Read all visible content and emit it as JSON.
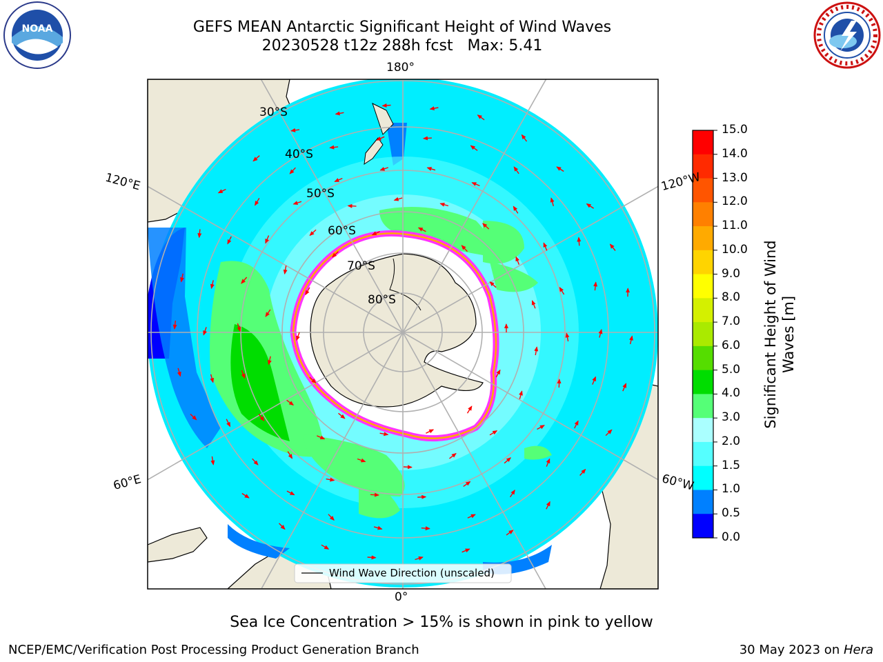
{
  "title_line1": "GEFS MEAN Antarctic Significant Height of Wind Waves",
  "title_line2": "20230528 t12z 288h fcst   Max: 5.41",
  "logos": {
    "left": "NOAA",
    "right": "NATIONAL WEATHER SERVICE"
  },
  "map": {
    "projection": "south-polar-stereographic",
    "longitude_labels": {
      "top": "180°",
      "bottom": "0°",
      "upper_left": "120°E",
      "upper_right": "120°W",
      "lower_left": "60°E",
      "lower_right": "60°W"
    },
    "latitude_labels": [
      "30°S",
      "40°S",
      "50°S",
      "60°S",
      "70°S",
      "80°S"
    ],
    "legend_text": "Wind Wave Direction (unscaled)",
    "colors": {
      "land": "#ede9d8",
      "ice": "#ffffff",
      "grid": "#b0b0b0",
      "arrow": "#ff0000",
      "ice_edge": [
        "#ff33ff",
        "#ffaa00",
        "#ffff00"
      ]
    }
  },
  "colorbar": {
    "label_line1": "Significant Height of Wind",
    "label_line2": "Waves [m]",
    "ticks": [
      "15.0",
      "14.0",
      "13.0",
      "12.0",
      "11.0",
      "10.0",
      "9.0",
      "8.0",
      "7.0",
      "6.0",
      "5.0",
      "4.0",
      "3.0",
      "2.0",
      "1.5",
      "1.0",
      "0.5",
      "0.0"
    ],
    "bins_top_to_bottom": [
      "#ff0000",
      "#ff2a00",
      "#ff5500",
      "#ff8000",
      "#ffaa00",
      "#ffd400",
      "#ffff00",
      "#d4f000",
      "#aaea00",
      "#55dd00",
      "#00dd00",
      "#55ff77",
      "#aaffff",
      "#55ffff",
      "#00ffff",
      "#0080ff",
      "#0000ff"
    ]
  },
  "bottom_note": "Sea Ice Concentration > 15% is shown in pink to yellow",
  "footer_left": "NCEP/EMC/Verification Post Processing Product Generation Branch",
  "footer_right_date": "30 May 2023 on ",
  "footer_right_machine": "Hera"
}
